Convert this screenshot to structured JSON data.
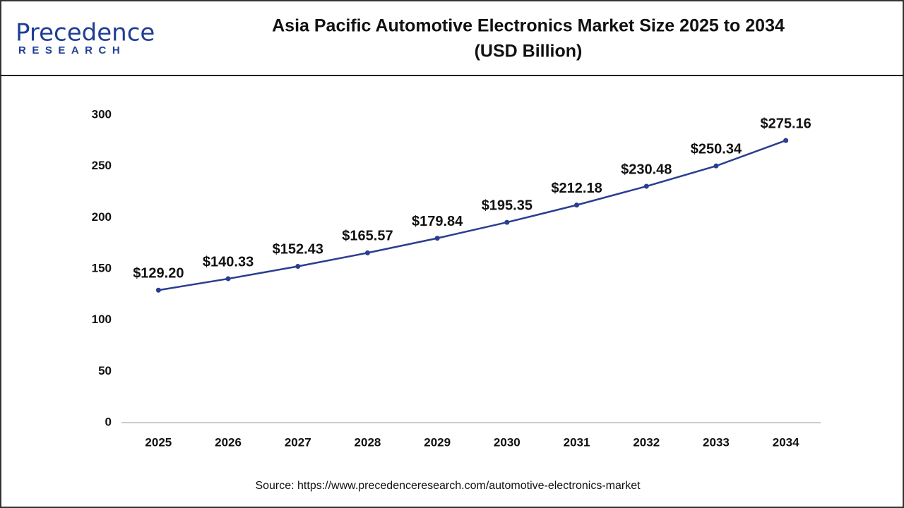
{
  "logo": {
    "name": "Precedence",
    "tagline": "RESEARCH"
  },
  "chart_data": {
    "type": "line",
    "title": "Asia Pacific Automotive Electronics Market Size 2025 to 2034",
    "subtitle": "(USD Billion)",
    "categories": [
      "2025",
      "2026",
      "2027",
      "2028",
      "2029",
      "2030",
      "2031",
      "2032",
      "2033",
      "2034"
    ],
    "values": [
      129.2,
      140.33,
      152.43,
      165.57,
      179.84,
      195.35,
      212.18,
      230.48,
      250.34,
      275.16
    ],
    "value_labels": [
      "$129.20",
      "$140.33",
      "$152.43",
      "$165.57",
      "$179.84",
      "$195.35",
      "$212.18",
      "$230.48",
      "$250.34",
      "$275.16"
    ],
    "color": "#2b3d8f",
    "ylim": [
      0,
      300
    ],
    "yticks": [
      0,
      50,
      100,
      150,
      200,
      250,
      300
    ],
    "grid": false
  },
  "source": "Source: https://www.precedenceresearch.com/automotive-electronics-market"
}
